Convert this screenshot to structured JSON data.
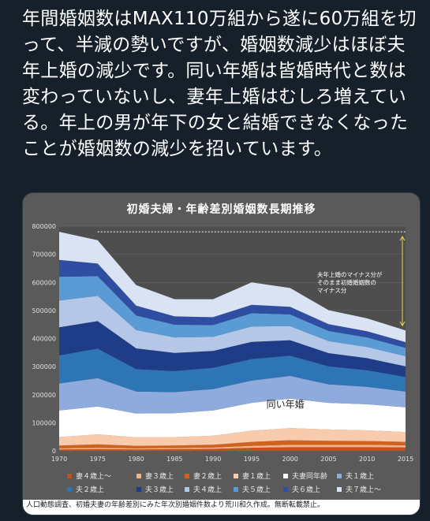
{
  "post": {
    "text": "年間婚姻数はMAX110万組から遂に60万組を切って、半減の勢いですが、婚姻数減少はほぼ夫年上婚の減少です。同い年婚は皆婚時代と数は変わっていないし、妻年上婚はむしろ増えている。年上の男が年下の女と結婚できなくなったことが婚姻数の減少を招いています。"
  },
  "chart_data": {
    "type": "area",
    "title": "初婚夫婦・年齢差別婚姻数長期推移",
    "x": [
      1970,
      1975,
      1980,
      1985,
      1990,
      1995,
      2000,
      2005,
      2010,
      2015
    ],
    "ylim": [
      0,
      800000
    ],
    "yticks": [
      "0",
      "100000",
      "200000",
      "300000",
      "400000",
      "500000",
      "600000",
      "700000",
      "800000"
    ],
    "stacked": true,
    "series": [
      {
        "name": "妻４歳上～",
        "color": "#c0501c",
        "values": [
          5000,
          6000,
          5000,
          6000,
          7000,
          11000,
          13000,
          13000,
          13000,
          12000
        ]
      },
      {
        "name": "妻３歳上",
        "color": "#f4b183",
        "values": [
          4000,
          5000,
          4000,
          4000,
          5000,
          7000,
          9000,
          9000,
          9000,
          8000
        ]
      },
      {
        "name": "妻２歳上",
        "color": "#d0621f",
        "values": [
          10000,
          12000,
          9000,
          9000,
          10000,
          14000,
          16000,
          14000,
          13000,
          12000
        ]
      },
      {
        "name": "妻１歳上",
        "color": "#f8cbad",
        "values": [
          30000,
          36000,
          30000,
          30000,
          32000,
          40000,
          43000,
          40000,
          38000,
          35000
        ]
      },
      {
        "name": "夫妻同年齢",
        "color": "#ffffff",
        "values": [
          95000,
          99000,
          85000,
          85000,
          90000,
          99000,
          105000,
          95000,
          93000,
          88000
        ]
      },
      {
        "name": "夫１歳上",
        "color": "#8faadc",
        "values": [
          96000,
          101000,
          78000,
          75000,
          76000,
          79000,
          81000,
          66000,
          62000,
          56000
        ]
      },
      {
        "name": "夫２歳上",
        "color": "#2e75b6",
        "values": [
          100000,
          105000,
          80000,
          75000,
          76000,
          77000,
          72000,
          64000,
          59000,
          52000
        ]
      },
      {
        "name": "夫３歳上",
        "color": "#1f3c88",
        "values": [
          100000,
          98000,
          74000,
          65000,
          60000,
          61000,
          55000,
          47000,
          43000,
          38000
        ]
      },
      {
        "name": "夫４歳上",
        "color": "#b4c7e7",
        "values": [
          95000,
          90000,
          65000,
          55000,
          50000,
          55000,
          50000,
          43000,
          40000,
          36000
        ]
      },
      {
        "name": "夫５歳上",
        "color": "#5b9bd5",
        "values": [
          85000,
          70000,
          52000,
          45000,
          42000,
          47000,
          42000,
          36000,
          34000,
          30000
        ]
      },
      {
        "name": "夫６歳上",
        "color": "#2f4ea2",
        "values": [
          60000,
          45000,
          35000,
          30000,
          28000,
          30000,
          27000,
          24000,
          22000,
          20000
        ]
      },
      {
        "name": "夫７歳上～",
        "color": "#dae3f3",
        "values": [
          100000,
          83000,
          73000,
          61000,
          64000,
          80000,
          67000,
          50000,
          46000,
          42000
        ]
      }
    ],
    "annotations": {
      "same_age_label": "同い年婚",
      "minus_note_line1": "夫年上婚のマイナス分が",
      "minus_note_line2": "そのまま初婚婚姻数の",
      "minus_note_line3": "マイナス分",
      "reference_value": 780000
    },
    "legend_placement": "bottom",
    "grid": true,
    "source_note": "人口動態調査、初婚夫妻の年齢差別にみた年次別婚姻件数より荒川和久作成。無断転載禁止。"
  }
}
